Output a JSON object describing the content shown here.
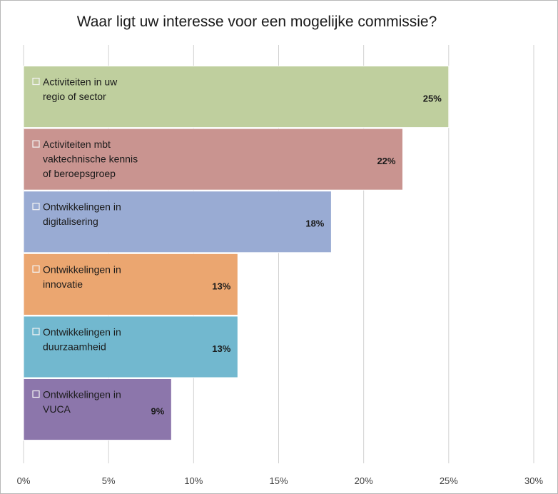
{
  "chart_data": {
    "type": "bar",
    "orientation": "horizontal",
    "title": "Waar ligt uw interesse voor een mogelijke commissie?",
    "xlabel": "",
    "ylabel": "",
    "xlim": [
      0,
      30
    ],
    "x_ticks": [
      "0%",
      "5%",
      "10%",
      "15%",
      "20%",
      "25%",
      "30%"
    ],
    "grid": "vertical",
    "legend": "none",
    "categories": [
      [
        "Activiteiten in uw",
        "regio of sector"
      ],
      [
        "Activiteiten mbt",
        "vaktechnische kennis",
        "of beroepsgroep"
      ],
      [
        "Ontwikkelingen in",
        "digitalisering"
      ],
      [
        "Ontwikkelingen in",
        "innovatie"
      ],
      [
        "Ontwikkelingen in",
        "duurzaamheid"
      ],
      [
        "Ontwikkelingen in",
        "VUCA"
      ]
    ],
    "values": [
      25,
      22.3,
      18.1,
      12.6,
      12.6,
      8.7
    ],
    "value_labels": [
      "25%",
      "22%",
      "18%",
      "13%",
      "13%",
      "9%"
    ],
    "colors": [
      "#bfcf9e",
      "#c99490",
      "#99abd3",
      "#eba670",
      "#72b8cf",
      "#8c76ab"
    ]
  }
}
